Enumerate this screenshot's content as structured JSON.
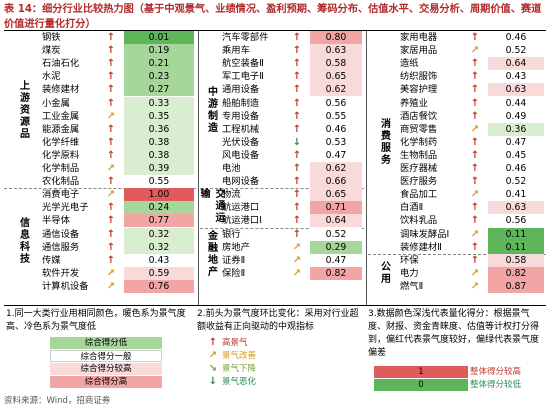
{
  "title": "表 14：细分行业比较热力图（基于中观景气、业绩情况、盈利预期、筹码分布、估值水平、交易分析、周期价值、赛道价值进行量化打分）",
  "colors": {
    "red_dark": "#e05c5c",
    "red_mid": "#f1a5a5",
    "red_light": "#f9dada",
    "green_dark": "#5fb65a",
    "green_mid": "#a6d69a",
    "green_light": "#d9eed1",
    "white": "#ffffff"
  },
  "columns": [
    {
      "sections": [
        {
          "category": "上游资源品",
          "rows": [
            {
              "name": "钢铁",
              "arrow": "↑",
              "dir": "up",
              "value": "0.01",
              "shade": "green_dark"
            },
            {
              "name": "煤炭",
              "arrow": "↑",
              "dir": "up",
              "value": "0.19",
              "shade": "green_mid"
            },
            {
              "name": "石油石化",
              "arrow": "↑",
              "dir": "up",
              "value": "0.21",
              "shade": "green_mid"
            },
            {
              "name": "水泥",
              "arrow": "↑",
              "dir": "up",
              "value": "0.23",
              "shade": "green_mid"
            },
            {
              "name": "装修建材",
              "arrow": "↑",
              "dir": "up",
              "value": "0.27",
              "shade": "green_mid"
            },
            {
              "name": "小金属",
              "arrow": "↑",
              "dir": "up",
              "value": "0.33",
              "shade": "green_light"
            },
            {
              "name": "工业金属",
              "arrow": "↗",
              "dir": "ne",
              "value": "0.35",
              "shade": "green_light"
            },
            {
              "name": "能源金属",
              "arrow": "↑",
              "dir": "up",
              "value": "0.36",
              "shade": "green_light"
            },
            {
              "name": "化学纤维",
              "arrow": "↑",
              "dir": "up",
              "value": "0.38",
              "shade": "green_light"
            },
            {
              "name": "化学原料",
              "arrow": "↑",
              "dir": "up",
              "value": "0.38",
              "shade": "green_light"
            },
            {
              "name": "化学制品",
              "arrow": "↗",
              "dir": "ne",
              "value": "0.39",
              "shade": "green_light"
            },
            {
              "name": "农化制品",
              "arrow": "↑",
              "dir": "up",
              "value": "0.55",
              "shade": "white"
            }
          ]
        },
        {
          "category": "信息科技",
          "rows": [
            {
              "name": "消费电子",
              "arrow": "↗",
              "dir": "ne",
              "value": "1.00",
              "shade": "red_dark"
            },
            {
              "name": "光学光电子",
              "arrow": "↑",
              "dir": "up",
              "value": "0.24",
              "shade": "green_mid"
            },
            {
              "name": "半导体",
              "arrow": "↑",
              "dir": "up",
              "value": "0.77",
              "shade": "red_mid"
            },
            {
              "name": "通信设备",
              "arrow": "↑",
              "dir": "up",
              "value": "0.32",
              "shade": "green_light"
            },
            {
              "name": "通信服务",
              "arrow": "↑",
              "dir": "up",
              "value": "0.32",
              "shade": "green_light"
            },
            {
              "name": "传媒",
              "arrow": "↑",
              "dir": "up",
              "value": "0.43",
              "shade": "white"
            },
            {
              "name": "软件开发",
              "arrow": "↗",
              "dir": "ne",
              "value": "0.59",
              "shade": "red_light"
            },
            {
              "name": "计算机设备",
              "arrow": "↗",
              "dir": "ne",
              "value": "0.76",
              "shade": "red_mid"
            }
          ]
        }
      ]
    },
    {
      "sections": [
        {
          "category": "中游制造",
          "rows": [
            {
              "name": "汽车零部件",
              "arrow": "↑",
              "dir": "up",
              "value": "0.80",
              "shade": "red_mid"
            },
            {
              "name": "乘用车",
              "arrow": "↑",
              "dir": "up",
              "value": "0.63",
              "shade": "red_light"
            },
            {
              "name": "航空装备Ⅱ",
              "arrow": "↑",
              "dir": "up",
              "value": "0.58",
              "shade": "red_light"
            },
            {
              "name": "军工电子Ⅱ",
              "arrow": "↑",
              "dir": "up",
              "value": "0.65",
              "shade": "red_light"
            },
            {
              "name": "通用设备",
              "arrow": "↑",
              "dir": "up",
              "value": "0.62",
              "shade": "red_light"
            },
            {
              "name": "船舶制造",
              "arrow": "↑",
              "dir": "up",
              "value": "0.56",
              "shade": "white"
            },
            {
              "name": "专用设备",
              "arrow": "↑",
              "dir": "up",
              "value": "0.55",
              "shade": "white"
            },
            {
              "name": "工程机械",
              "arrow": "↑",
              "dir": "up",
              "value": "0.46",
              "shade": "white"
            },
            {
              "name": "光伏设备",
              "arrow": "↓",
              "dir": "down",
              "value": "0.53",
              "shade": "white"
            },
            {
              "name": "风电设备",
              "arrow": "↑",
              "dir": "up",
              "value": "0.47",
              "shade": "white"
            },
            {
              "name": "电池",
              "arrow": "↑",
              "dir": "up",
              "value": "0.62",
              "shade": "red_light"
            },
            {
              "name": "电网设备",
              "arrow": "↑",
              "dir": "up",
              "value": "0.66",
              "shade": "red_light"
            }
          ]
        },
        {
          "category": "交通运输",
          "rows": [
            {
              "name": "物流",
              "arrow": "↑",
              "dir": "up",
              "value": "0.65",
              "shade": "red_light"
            },
            {
              "name": "航运港口",
              "arrow": "↑",
              "dir": "up",
              "value": "0.71",
              "shade": "red_mid"
            },
            {
              "name": "航运港口Ⅰ",
              "arrow": "↑",
              "dir": "up",
              "value": "0.64",
              "shade": "red_light"
            }
          ]
        },
        {
          "category": "金融地产",
          "rows": [
            {
              "name": "银行",
              "arrow": "↑",
              "dir": "up",
              "value": "0.52",
              "shade": "white"
            },
            {
              "name": "房地产",
              "arrow": "↗",
              "dir": "ne",
              "value": "0.29",
              "shade": "green_mid"
            },
            {
              "name": "证券Ⅱ",
              "arrow": "↗",
              "dir": "ne",
              "value": "0.47",
              "shade": "white"
            },
            {
              "name": "保险Ⅱ",
              "arrow": "↗",
              "dir": "ne",
              "value": "0.82",
              "shade": "red_mid"
            }
          ]
        }
      ]
    },
    {
      "sections": [
        {
          "category": "消费服务",
          "rows": [
            {
              "name": "家用电器",
              "arrow": "↑",
              "dir": "up",
              "value": "0.46",
              "shade": "white"
            },
            {
              "name": "家居用品",
              "arrow": "↗",
              "dir": "ne",
              "value": "0.52",
              "shade": "white"
            },
            {
              "name": "造纸",
              "arrow": "↑",
              "dir": "up",
              "value": "0.64",
              "shade": "red_light"
            },
            {
              "name": "纺织服饰",
              "arrow": "↑",
              "dir": "up",
              "value": "0.43",
              "shade": "white"
            },
            {
              "name": "美容护理",
              "arrow": "↑",
              "dir": "up",
              "value": "0.63",
              "shade": "red_light"
            },
            {
              "name": "养殖业",
              "arrow": "↑",
              "dir": "up",
              "value": "0.44",
              "shade": "white"
            },
            {
              "name": "酒店餐饮",
              "arrow": "↑",
              "dir": "up",
              "value": "0.49",
              "shade": "white"
            },
            {
              "name": "商贸零售",
              "arrow": "↗",
              "dir": "ne",
              "value": "0.36",
              "shade": "green_light"
            },
            {
              "name": "化学制药",
              "arrow": "↑",
              "dir": "up",
              "value": "0.47",
              "shade": "white"
            },
            {
              "name": "生物制品",
              "arrow": "↑",
              "dir": "up",
              "value": "0.45",
              "shade": "white"
            },
            {
              "name": "医疗器械",
              "arrow": "↑",
              "dir": "up",
              "value": "0.46",
              "shade": "white"
            },
            {
              "name": "医疗服务",
              "arrow": "↑",
              "dir": "up",
              "value": "0.52",
              "shade": "white"
            },
            {
              "name": "食品加工",
              "arrow": "↗",
              "dir": "ne",
              "value": "0.41",
              "shade": "white"
            },
            {
              "name": "白酒Ⅱ",
              "arrow": "↑",
              "dir": "up",
              "value": "0.63",
              "shade": "red_light"
            },
            {
              "name": "饮料乳品",
              "arrow": "↑",
              "dir": "up",
              "value": "0.56",
              "shade": "white"
            },
            {
              "name": "调味发酵品Ⅰ",
              "arrow": "↗",
              "dir": "ne",
              "value": "0.11",
              "shade": "green_dark"
            },
            {
              "name": "装修建材Ⅱ",
              "arrow": "↑",
              "dir": "up",
              "value": "0.11",
              "shade": "green_dark"
            }
          ]
        },
        {
          "category": "公用",
          "rows": [
            {
              "name": "环保",
              "arrow": "↑",
              "dir": "up",
              "value": "0.58",
              "shade": "red_light"
            },
            {
              "name": "电力",
              "arrow": "↗",
              "dir": "ne",
              "value": "0.82",
              "shade": "red_mid"
            },
            {
              "name": "燃气Ⅱ",
              "arrow": "↗",
              "dir": "ne",
              "value": "0.87",
              "shade": "red_mid"
            }
          ]
        }
      ]
    }
  ],
  "notes": {
    "n1": "1.同一大类行业用相同颜色，暖色系为景气度高、冷色系为景气度低",
    "n2": "2.前头为景气度环比变化：采用对行业超额收益有正向驱动的中观指标",
    "n3": "3.数据颜色深浅代表量化得分：根据景气度、财报、资金青睐度、估值等计权打分得到，偏红代表景气度较好，偏绿代表景气度偏差"
  },
  "legend1": [
    {
      "label": "综合得分低",
      "shade": "green_mid"
    },
    {
      "label": "综合得分一般",
      "shade": "white"
    },
    {
      "label": "综合得分较高",
      "shade": "red_light"
    },
    {
      "label": "综合得分高",
      "shade": "red_mid"
    }
  ],
  "legend2": [
    {
      "arrow": "↑",
      "dir": "up",
      "label": "高景气"
    },
    {
      "arrow": "↗",
      "dir": "ne",
      "label": "景气改善"
    },
    {
      "arrow": "↘",
      "dir": "se",
      "label": "景气下降"
    },
    {
      "arrow": "↓",
      "dir": "down",
      "label": "景气恶化"
    }
  ],
  "legend3": [
    {
      "value": "1",
      "label": "整体得分较高",
      "shade": "red_dark"
    },
    {
      "value": "0",
      "label": "整体得分较低",
      "shade": "green_dark"
    }
  ],
  "source": "资料来源：Wind，招商证券"
}
